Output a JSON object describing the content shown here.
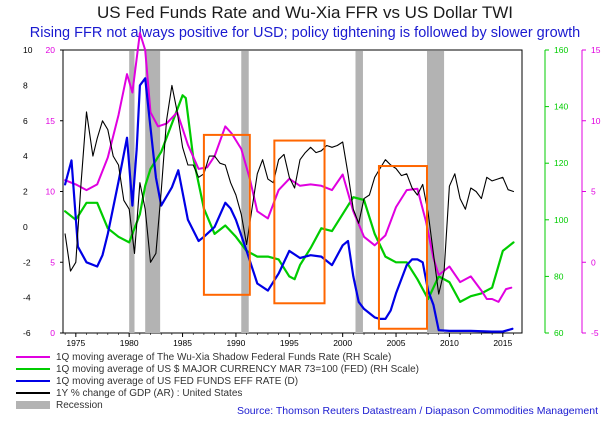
{
  "title": "US Fed Funds Rate and Wu-Xia FFR vs US Dollar TWI",
  "subtitle": "Rising FFR not always positive for USD; policy tightening is followed by slower growth",
  "source": "Source: Thomson Reuters Datastream / Diapason Commodities Management",
  "colors": {
    "wuxia": "#e000e0",
    "usd": "#00cc00",
    "ffr": "#0000e6",
    "gdp": "#000000",
    "recession": "#b3b3b3",
    "highlight_box": "#ff6600",
    "left_axis": "#000000",
    "left_axis2": "#e000e0",
    "right_axis_usd": "#00cc00",
    "right_axis_ffr": "#0000e6"
  },
  "chart_data": {
    "type": "line",
    "x_range": [
      1973.8,
      2016.8
    ],
    "x_ticks": [
      "1975",
      "1980",
      "1985",
      "1990",
      "1995",
      "2000",
      "2005",
      "2010",
      "2015"
    ],
    "axes": {
      "gdp_left": {
        "range": [
          -6,
          10
        ],
        "ticks": [
          "10",
          "8",
          "6",
          "4",
          "2",
          "0",
          "-2",
          "-4",
          "-6"
        ],
        "ticks_vals": [
          10,
          8,
          6,
          4,
          2,
          0,
          -2,
          -4,
          -6
        ]
      },
      "ffr_left": {
        "range": [
          0,
          20
        ],
        "ticks": [
          "20",
          "15",
          "10",
          "5",
          "0"
        ],
        "ticks_vals": [
          20,
          15,
          10,
          5,
          0
        ]
      },
      "usd_right": {
        "range": [
          60,
          160
        ],
        "ticks": [
          "160",
          "140",
          "120",
          "100",
          "80",
          "60"
        ],
        "ticks_vals": [
          160,
          140,
          120,
          100,
          80,
          60
        ]
      },
      "wuxia_right": {
        "range": [
          -5,
          15
        ],
        "ticks": [
          "15",
          "10",
          "5",
          "0",
          "-5"
        ],
        "ticks_vals": [
          15,
          10,
          5,
          0,
          -5
        ]
      }
    },
    "recessions": [
      [
        1980.0,
        1980.5
      ],
      [
        1981.5,
        1982.9
      ],
      [
        1990.5,
        1991.2
      ],
      [
        2001.2,
        2001.9
      ],
      [
        2007.9,
        2009.5
      ]
    ],
    "highlight_boxes": [
      {
        "x": [
          1987.0,
          1991.3
        ],
        "y_ffr": [
          2.7,
          14.0
        ]
      },
      {
        "x": [
          1993.6,
          1998.3
        ],
        "y_ffr": [
          2.1,
          13.6
        ]
      },
      {
        "x": [
          2003.4,
          2007.9
        ],
        "y_ffr": [
          0.3,
          11.8
        ]
      }
    ],
    "series": [
      {
        "name": "1Q moving average of The Wu-Xia Shadow Federal Funds Rate (RH Scale)",
        "axis": "wuxia_right",
        "color_key": "wuxia",
        "x": [
          1974,
          1975,
          1976,
          1977,
          1978,
          1979,
          1979.8,
          1980.3,
          1981,
          1981.5,
          1982,
          1982.7,
          1983.5,
          1984.5,
          1985.5,
          1986.5,
          1987.3,
          1988,
          1989,
          1989.6,
          1990.5,
          1991.3,
          1992,
          1993,
          1994,
          1995,
          1996,
          1997,
          1998,
          1999,
          2000,
          2001,
          2002,
          2003,
          2004,
          2005,
          2006,
          2007,
          2007.8,
          2008.5,
          2009,
          2010,
          2011,
          2012,
          2013,
          2013.5,
          2014,
          2014.6,
          2015.3,
          2015.8
        ],
        "values": [
          5.8,
          5.5,
          5.1,
          5.5,
          7.4,
          10.4,
          13.3,
          12.0,
          16.2,
          15.0,
          10.6,
          9.6,
          9.8,
          10.6,
          8.3,
          6.6,
          6.7,
          7.5,
          9.6,
          9.1,
          8.0,
          5.9,
          3.6,
          3.1,
          5.1,
          5.9,
          5.4,
          5.5,
          5.4,
          5.1,
          6.2,
          3.6,
          1.8,
          1.2,
          1.9,
          3.9,
          5.1,
          5.2,
          2.9,
          0.3,
          -0.9,
          -0.3,
          -1.4,
          -1.0,
          -2.0,
          -2.6,
          -2.6,
          -2.8,
          -1.9,
          -1.8
        ]
      },
      {
        "name": "1Q moving average of US $ MAJOR CURRENCY MAR 73=100 (FED) (RH Scale)",
        "axis": "usd_right",
        "color_key": "usd",
        "x": [
          1974,
          1975,
          1976,
          1977,
          1978,
          1979,
          1980,
          1981,
          1981.5,
          1982,
          1983,
          1984,
          1985,
          1985.3,
          1986,
          1987,
          1988,
          1989,
          1990,
          1991,
          1992,
          1993,
          1994,
          1995,
          1995.5,
          1996,
          1997,
          1998,
          1999,
          2000,
          2001,
          2002,
          2003,
          2004,
          2005,
          2006,
          2007,
          2008,
          2009,
          2010,
          2011,
          2012,
          2013,
          2014,
          2015,
          2016
        ],
        "values": [
          103,
          100,
          106,
          106,
          97,
          94,
          92,
          102,
          112,
          118,
          124,
          134,
          144,
          143,
          122,
          104,
          95,
          98,
          94,
          89,
          87,
          87,
          86,
          80,
          79,
          84,
          90,
          97,
          96,
          102,
          108,
          107,
          95,
          87,
          85,
          85,
          79,
          72,
          80,
          78,
          71,
          73,
          74,
          76,
          89,
          92
        ]
      },
      {
        "name": "1Q moving average of US FED FUNDS EFF RATE (D)",
        "axis": "ffr_left",
        "color_key": "ffr",
        "x": [
          1974,
          1974.6,
          1975.2,
          1976,
          1977,
          1977.5,
          1978,
          1979,
          1979.8,
          1980.3,
          1980.7,
          1981,
          1981.5,
          1982,
          1982.5,
          1983,
          1984,
          1984.6,
          1985.5,
          1986.5,
          1987,
          1988,
          1989,
          1989.5,
          1990,
          1991,
          1992,
          1993,
          1994,
          1995,
          1996,
          1997,
          1998,
          1999,
          2000,
          2000.5,
          2001,
          2001.5,
          2002,
          2003,
          2003.5,
          2004,
          2004.5,
          2005,
          2006,
          2006.5,
          2007,
          2007.5,
          2008,
          2008.5,
          2009,
          2010,
          2012,
          2014,
          2015,
          2015.9
        ],
        "values": [
          10.5,
          12.2,
          6.1,
          5.0,
          4.7,
          5.5,
          7.0,
          10.7,
          13.8,
          9.0,
          13.0,
          17.5,
          18.0,
          14.5,
          11.0,
          9.0,
          10.3,
          11.5,
          8.0,
          6.5,
          6.8,
          7.5,
          9.2,
          8.8,
          8.0,
          5.8,
          3.5,
          3.0,
          4.2,
          5.8,
          5.3,
          5.5,
          5.4,
          4.8,
          6.2,
          6.5,
          4.0,
          2.2,
          1.7,
          1.1,
          1.0,
          1.0,
          1.6,
          2.8,
          4.8,
          5.2,
          5.2,
          5.0,
          3.0,
          2.0,
          0.2,
          0.15,
          0.15,
          0.1,
          0.1,
          0.3
        ]
      },
      {
        "name": "1Y % change of GDP (AR) : United States",
        "axis": "gdp_left",
        "color_key": "gdp",
        "x": [
          1974,
          1974.5,
          1975,
          1975.5,
          1976,
          1976.6,
          1977,
          1977.5,
          1978,
          1978.5,
          1979,
          1979.5,
          1980,
          1980.5,
          1981,
          1981.5,
          1982,
          1982.5,
          1983,
          1983.5,
          1984,
          1984.5,
          1985,
          1985.5,
          1986,
          1986.5,
          1987,
          1987.5,
          1988,
          1988.5,
          1989,
          1989.5,
          1990,
          1990.5,
          1991,
          1991.5,
          1992,
          1992.5,
          1993,
          1993.5,
          1994,
          1994.5,
          1995,
          1995.5,
          1996,
          1996.5,
          1997,
          1997.5,
          1998,
          1998.5,
          1999,
          1999.5,
          2000,
          2000.5,
          2001,
          2001.5,
          2002,
          2002.5,
          2003,
          2003.5,
          2004,
          2004.5,
          2005,
          2005.5,
          2006,
          2006.5,
          2007,
          2007.5,
          2008,
          2008.5,
          2009,
          2009.5,
          2010,
          2010.5,
          2011,
          2011.5,
          2012,
          2012.5,
          2013,
          2013.5,
          2014,
          2014.5,
          2015,
          2015.5,
          2016
        ],
        "values": [
          -0.4,
          -2.5,
          -2.0,
          2.5,
          6.5,
          4.0,
          5.0,
          6.0,
          5.5,
          4.0,
          3.5,
          1.5,
          1.0,
          -1.5,
          2.5,
          1.0,
          -2.0,
          -1.5,
          2.0,
          6.0,
          8.0,
          6.5,
          4.5,
          3.5,
          3.5,
          2.8,
          3.0,
          4.0,
          4.0,
          3.6,
          3.5,
          2.5,
          1.8,
          0.7,
          -1.0,
          1.0,
          3.0,
          3.8,
          2.7,
          2.5,
          3.8,
          4.1,
          2.8,
          2.2,
          3.8,
          4.2,
          4.5,
          4.2,
          4.3,
          4.6,
          4.5,
          4.6,
          4.8,
          3.0,
          1.0,
          0.2,
          1.6,
          1.8,
          2.8,
          3.3,
          3.8,
          3.5,
          3.3,
          2.9,
          3.0,
          2.2,
          1.8,
          2.4,
          0.8,
          -1.5,
          -3.8,
          -2.5,
          2.3,
          3.0,
          1.6,
          1.0,
          2.2,
          2.0,
          1.6,
          2.8,
          2.6,
          2.7,
          2.8,
          2.1,
          2.0
        ]
      }
    ],
    "legend": [
      {
        "label": "1Q moving average of The Wu-Xia Shadow Federal Funds Rate (RH Scale)",
        "color_key": "wuxia",
        "kind": "line"
      },
      {
        "label": "1Q moving average of US $ MAJOR CURRENCY MAR 73=100 (FED) (RH Scale)",
        "color_key": "usd",
        "kind": "line"
      },
      {
        "label": "1Q moving average of US FED FUNDS EFF RATE (D)",
        "color_key": "ffr",
        "kind": "line"
      },
      {
        "label": "1Y % change of GDP (AR) : United States",
        "color_key": "gdp",
        "kind": "line"
      },
      {
        "label": "Recession",
        "color_key": "recession",
        "kind": "box"
      }
    ]
  }
}
